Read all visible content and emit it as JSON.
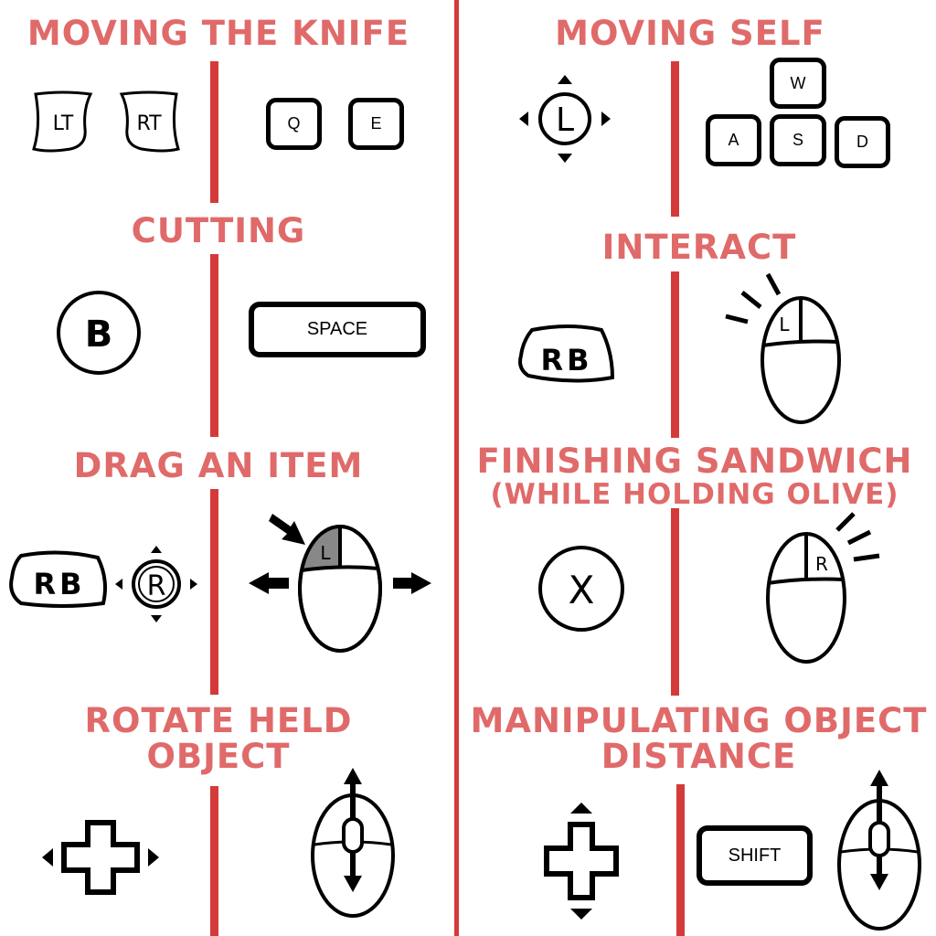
{
  "colors": {
    "title": "#e06a6a",
    "divider": "#d53a3a",
    "ink": "#000000",
    "highlight": "#888888"
  },
  "sections": {
    "moving_knife": {
      "title": "MOVING THE KNIFE",
      "controller": {
        "left_trigger": "LT",
        "right_trigger": "RT"
      },
      "keyboard": {
        "key_q": "Q",
        "key_e": "E"
      }
    },
    "moving_self": {
      "title": "MOVING SELF",
      "controller": {
        "left_stick": "L"
      },
      "keyboard": {
        "key_w": "W",
        "key_a": "A",
        "key_s": "S",
        "key_d": "D"
      }
    },
    "cutting": {
      "title": "CUTTING",
      "controller": {
        "button": "B"
      },
      "keyboard": {
        "key": "SPACE"
      }
    },
    "interact": {
      "title": "INTERACT",
      "controller": {
        "bumper": "RB"
      },
      "mouse": {
        "button": "L"
      }
    },
    "drag_item": {
      "title": "DRAG AN ITEM",
      "controller": {
        "bumper": "RB",
        "right_stick": "R"
      },
      "mouse": {
        "button": "L"
      }
    },
    "finishing_sandwich": {
      "title_line1": "FINISHING SANDWICH",
      "title_line2": "(WHILE HOLDING OLIVE)",
      "controller": {
        "button": "X"
      },
      "mouse": {
        "button": "R"
      }
    },
    "rotate_held": {
      "title_line1": "ROTATE HELD",
      "title_line2": "OBJECT",
      "controller": {
        "input": "d-pad-left-right-icon"
      },
      "mouse": {
        "input": "scroll-wheel-icon"
      }
    },
    "object_distance": {
      "title_line1": "MANIPULATING OBJECT",
      "title_line2": "DISTANCE",
      "controller": {
        "input": "d-pad-up-down-icon"
      },
      "keyboard": {
        "key": "SHIFT"
      },
      "mouse": {
        "input": "scroll-wheel-icon"
      }
    }
  }
}
